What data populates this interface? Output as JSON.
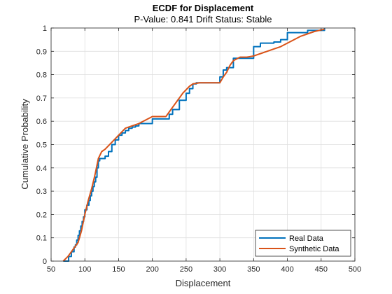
{
  "colors": {
    "real": "#0072BD",
    "synthetic": "#D95319",
    "grid": "#DFDFDF",
    "axis": "#262626"
  },
  "chart_data": {
    "type": "line",
    "title": "ECDF for Displacement",
    "subtitle": "P-Value: 0.841 Drift Status: Stable",
    "xlabel": "Displacement",
    "ylabel": "Cumulative Probability",
    "xlim": [
      50,
      500
    ],
    "ylim": [
      0,
      1
    ],
    "xticks": [
      50,
      100,
      150,
      200,
      250,
      300,
      350,
      400,
      450,
      500
    ],
    "yticks": [
      0,
      0.1,
      0.2,
      0.3,
      0.4,
      0.5,
      0.6,
      0.7,
      0.8,
      0.9,
      1
    ],
    "xtick_labels": [
      "50",
      "100",
      "150",
      "200",
      "250",
      "300",
      "350",
      "400",
      "450",
      "500"
    ],
    "ytick_labels": [
      "0",
      "0.1",
      "0.2",
      "0.3",
      "0.4",
      "0.5",
      "0.6",
      "0.7",
      "0.8",
      "0.9",
      "1"
    ],
    "grid": true,
    "legend_position": "bottom-right",
    "series": [
      {
        "name": "Real Data",
        "style": "step",
        "x": [
          68,
          76,
          80,
          84,
          86,
          88,
          90,
          92,
          94,
          96,
          98,
          100,
          103,
          106,
          108,
          110,
          112,
          114,
          116,
          118,
          120,
          122,
          130,
          135,
          140,
          145,
          150,
          155,
          160,
          165,
          170,
          175,
          180,
          200,
          225,
          230,
          240,
          250,
          255,
          260,
          265,
          300,
          305,
          310,
          320,
          350,
          360,
          380,
          390,
          400,
          430,
          455
        ],
        "y": [
          0,
          0.02,
          0.04,
          0.06,
          0.07,
          0.09,
          0.11,
          0.13,
          0.15,
          0.17,
          0.19,
          0.22,
          0.24,
          0.26,
          0.28,
          0.3,
          0.32,
          0.34,
          0.36,
          0.4,
          0.43,
          0.44,
          0.45,
          0.47,
          0.5,
          0.52,
          0.54,
          0.55,
          0.56,
          0.57,
          0.575,
          0.58,
          0.59,
          0.61,
          0.63,
          0.65,
          0.69,
          0.72,
          0.74,
          0.76,
          0.765,
          0.79,
          0.82,
          0.83,
          0.87,
          0.92,
          0.935,
          0.94,
          0.95,
          0.98,
          0.99,
          1.0
        ]
      },
      {
        "name": "Synthetic Data",
        "style": "line",
        "x": [
          68,
          75,
          80,
          85,
          90,
          95,
          100,
          105,
          110,
          115,
          120,
          125,
          130,
          140,
          150,
          160,
          170,
          180,
          190,
          200,
          210,
          220,
          225,
          230,
          235,
          240,
          245,
          250,
          255,
          260,
          270,
          280,
          290,
          300,
          305,
          310,
          315,
          320,
          330,
          340,
          350,
          360,
          370,
          380,
          390,
          400,
          420,
          440,
          455
        ],
        "y": [
          0,
          0.02,
          0.04,
          0.06,
          0.08,
          0.13,
          0.2,
          0.26,
          0.31,
          0.37,
          0.44,
          0.47,
          0.48,
          0.51,
          0.54,
          0.57,
          0.58,
          0.59,
          0.605,
          0.62,
          0.62,
          0.62,
          0.64,
          0.66,
          0.68,
          0.7,
          0.72,
          0.735,
          0.75,
          0.76,
          0.765,
          0.765,
          0.765,
          0.765,
          0.79,
          0.81,
          0.84,
          0.86,
          0.875,
          0.875,
          0.88,
          0.89,
          0.9,
          0.91,
          0.92,
          0.935,
          0.965,
          0.985,
          0.995
        ]
      }
    ]
  }
}
